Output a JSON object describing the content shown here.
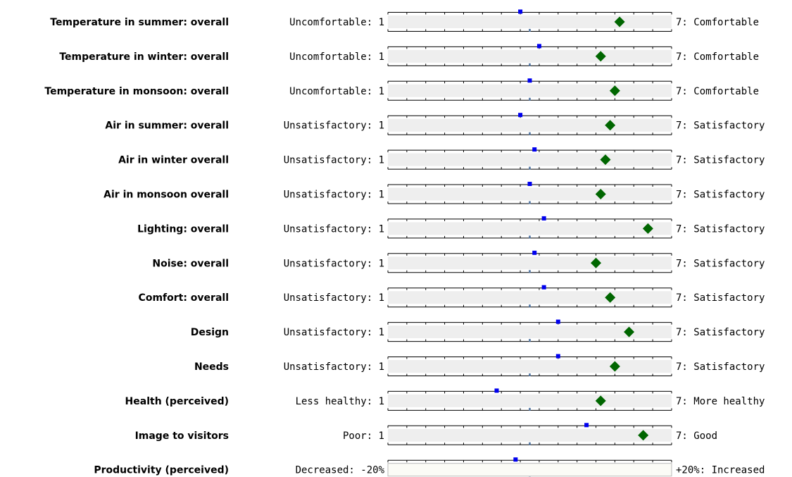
{
  "chart_data": {
    "type": "scatter",
    "title": "",
    "xlabel": "",
    "ylabel": "",
    "scale_min": 1,
    "scale_max": 7,
    "midpoint": 4,
    "grid": false,
    "colors": {
      "track": "#eeeeee",
      "axis": "#000000",
      "midline": "#4a6f9c",
      "this_building": "#006600",
      "benchmark": "#0000ee"
    },
    "rows": [
      {
        "label": "Temperature in summer: overall",
        "left": "Uncomfortable: 1",
        "right": "7: Comfortable",
        "benchmark": 3.8,
        "value": 5.9
      },
      {
        "label": "Temperature in winter: overall",
        "left": "Uncomfortable: 1",
        "right": "7: Comfortable",
        "benchmark": 4.2,
        "value": 5.5
      },
      {
        "label": "Temperature in monsoon: overall",
        "left": "Uncomfortable: 1",
        "right": "7: Comfortable",
        "benchmark": 4.0,
        "value": 5.8
      },
      {
        "label": "Air in summer: overall",
        "left": "Unsatisfactory: 1",
        "right": "7: Satisfactory",
        "benchmark": 3.8,
        "value": 5.7
      },
      {
        "label": "Air in winter overall",
        "left": "Unsatisfactory: 1",
        "right": "7: Satisfactory",
        "benchmark": 4.1,
        "value": 5.6
      },
      {
        "label": "Air in monsoon overall",
        "left": "Unsatisfactory: 1",
        "right": "7: Satisfactory",
        "benchmark": 4.0,
        "value": 5.5
      },
      {
        "label": "Lighting: overall",
        "left": "Unsatisfactory: 1",
        "right": "7: Satisfactory",
        "benchmark": 4.3,
        "value": 6.5
      },
      {
        "label": "Noise: overall",
        "left": "Unsatisfactory: 1",
        "right": "7: Satisfactory",
        "benchmark": 4.1,
        "value": 5.4
      },
      {
        "label": "Comfort: overall",
        "left": "Unsatisfactory: 1",
        "right": "7: Satisfactory",
        "benchmark": 4.3,
        "value": 5.7
      },
      {
        "label": "Design",
        "left": "Unsatisfactory: 1",
        "right": "7: Satisfactory",
        "benchmark": 4.6,
        "value": 6.1
      },
      {
        "label": "Needs",
        "left": "Unsatisfactory: 1",
        "right": "7: Satisfactory",
        "benchmark": 4.6,
        "value": 5.8
      },
      {
        "label": "Health (perceived)",
        "left": "Less healthy: 1",
        "right": "7: More healthy",
        "benchmark": 3.3,
        "value": 5.5
      },
      {
        "label": "Image to visitors",
        "left": "Poor: 1",
        "right": "7: Good",
        "benchmark": 5.2,
        "value": 6.4
      },
      {
        "label": "Productivity (perceived)",
        "left": "Decreased: -20%",
        "right": "+20%: Increased",
        "benchmark": 3.7,
        "value": null
      }
    ]
  }
}
